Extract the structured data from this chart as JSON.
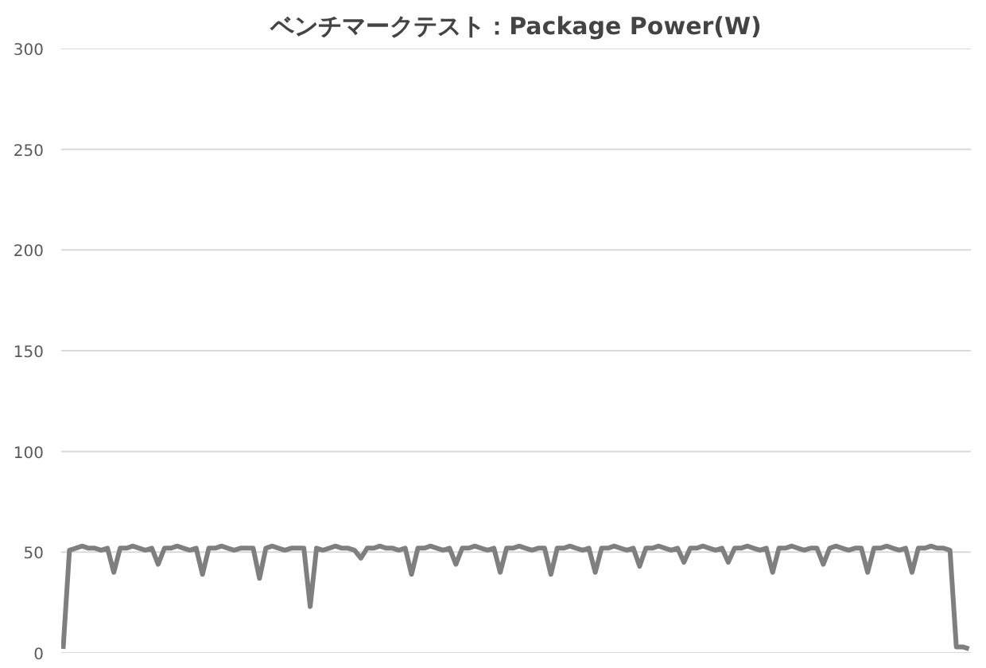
{
  "chart_data": {
    "type": "line",
    "title": "ベンチマークテスト：Package Power(W)",
    "categories": [
      null,
      null,
      null,
      null,
      null,
      null,
      null,
      null,
      null,
      null,
      null,
      null,
      null,
      null,
      null,
      null,
      null,
      null,
      null,
      null,
      null,
      null,
      null,
      null,
      null,
      null,
      null,
      null,
      null,
      null,
      null,
      null,
      null,
      null,
      null,
      null,
      null,
      null,
      null,
      null,
      null,
      null,
      null,
      null,
      null,
      null,
      null,
      null,
      null,
      null,
      null,
      null,
      null,
      null,
      null,
      null,
      null,
      null,
      null,
      null,
      null,
      null,
      null,
      null,
      null,
      null,
      null,
      null,
      null,
      null,
      null,
      null,
      null,
      null,
      null,
      null,
      null,
      null,
      null,
      null,
      null,
      null,
      null,
      null,
      null,
      null,
      null,
      null,
      null,
      null,
      null,
      null,
      null,
      null,
      null,
      null,
      null,
      null,
      null,
      null,
      null,
      null,
      null,
      null,
      null,
      null,
      null,
      null,
      null,
      null,
      null,
      null,
      null,
      null,
      null,
      null,
      null,
      null,
      null,
      null,
      null,
      null,
      null,
      null,
      null,
      null,
      null,
      null,
      null,
      null,
      null,
      null,
      null,
      null,
      null,
      null,
      null,
      null,
      null,
      null,
      null,
      null,
      null,
      null
    ],
    "series": [
      {
        "color": "#7f7f7f",
        "values": [
          2,
          51,
          52,
          53,
          52,
          52,
          51,
          52,
          40,
          52,
          52,
          53,
          52,
          51,
          52,
          44,
          52,
          52,
          53,
          52,
          51,
          52,
          39,
          52,
          52,
          53,
          52,
          51,
          52,
          52,
          52,
          37,
          52,
          53,
          52,
          51,
          52,
          52,
          52,
          23,
          52,
          51,
          52,
          53,
          52,
          52,
          51,
          47,
          52,
          52,
          53,
          52,
          52,
          51,
          52,
          39,
          52,
          52,
          53,
          52,
          51,
          52,
          44,
          52,
          52,
          53,
          52,
          51,
          52,
          40,
          52,
          52,
          53,
          52,
          51,
          52,
          52,
          39,
          52,
          52,
          53,
          52,
          51,
          52,
          40,
          52,
          52,
          53,
          52,
          51,
          52,
          43,
          52,
          52,
          53,
          52,
          51,
          52,
          45,
          52,
          52,
          53,
          52,
          51,
          52,
          45,
          52,
          52,
          53,
          52,
          51,
          52,
          40,
          52,
          52,
          53,
          52,
          51,
          52,
          52,
          44,
          52,
          53,
          52,
          51,
          52,
          52,
          40,
          52,
          52,
          53,
          52,
          51,
          52,
          40,
          52,
          52,
          53,
          52,
          52,
          51,
          3,
          3,
          2
        ]
      }
    ],
    "ylim": [
      0,
      300
    ],
    "yticks": [
      0,
      50,
      100,
      150,
      200,
      250,
      300
    ],
    "grid": "y",
    "marker": "none",
    "line_style": "solid",
    "tick_labels": "y"
  }
}
